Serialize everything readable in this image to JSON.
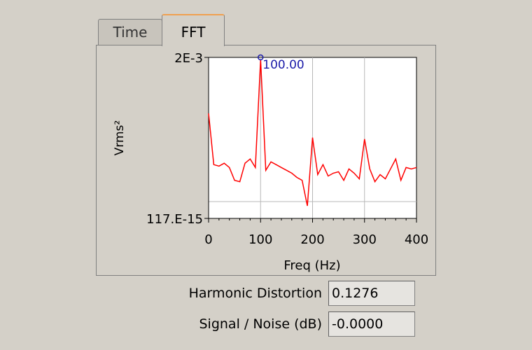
{
  "tabs": [
    {
      "label": "Time",
      "selected": false
    },
    {
      "label": "FFT",
      "selected": true
    }
  ],
  "chart_data": {
    "type": "line",
    "ylabel": "Vrms²",
    "xlabel": "Freq (Hz)",
    "xlim": [
      0,
      400
    ],
    "x_ticks": [
      "0",
      "100",
      "200",
      "300",
      "400"
    ],
    "y_ticks": [
      "117.E-15",
      "2E-3"
    ],
    "grid": true,
    "line_color": "#ff0000",
    "marker_color": "#1a1aa8",
    "cursor": {
      "x": 100,
      "label": "100.00"
    },
    "x": [
      0,
      10,
      20,
      30,
      40,
      50,
      60,
      70,
      80,
      90,
      100,
      110,
      120,
      130,
      140,
      150,
      160,
      170,
      180,
      190,
      200,
      210,
      220,
      230,
      240,
      250,
      260,
      270,
      280,
      290,
      300,
      310,
      320,
      330,
      340,
      350,
      360,
      370,
      380,
      390,
      400
    ],
    "y": [
      0.62,
      0.26,
      0.25,
      0.27,
      0.24,
      0.15,
      0.14,
      0.27,
      0.3,
      0.24,
      1.0,
      0.22,
      0.28,
      0.26,
      0.24,
      0.22,
      0.2,
      0.17,
      0.15,
      -0.03,
      0.45,
      0.19,
      0.26,
      0.18,
      0.2,
      0.21,
      0.15,
      0.23,
      0.2,
      0.16,
      0.44,
      0.23,
      0.14,
      0.19,
      0.16,
      0.23,
      0.3,
      0.15,
      0.24,
      0.23,
      0.24
    ]
  },
  "fields": {
    "harmonic_distortion": {
      "label": "Harmonic Distortion",
      "value": "0.1276"
    },
    "signal_noise": {
      "label": "Signal / Noise (dB)",
      "value": "-0.0000"
    }
  }
}
